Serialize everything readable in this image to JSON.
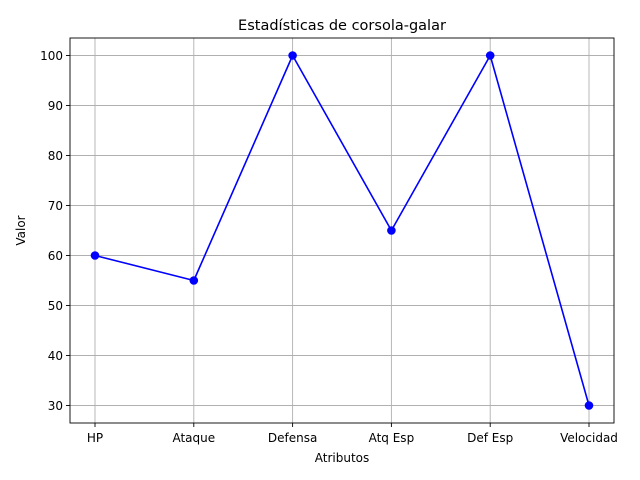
{
  "chart_data": {
    "type": "line",
    "title": "Estadísticas de corsola-galar",
    "xlabel": "Atributos",
    "ylabel": "Valor",
    "categories": [
      "HP",
      "Ataque",
      "Defensa",
      "Atq Esp",
      "Def Esp",
      "Velocidad"
    ],
    "series": [
      {
        "values": [
          60,
          55,
          100,
          65,
          100,
          30
        ]
      }
    ],
    "yticks": [
      30,
      40,
      50,
      60,
      70,
      80,
      90,
      100
    ],
    "ylim": [
      26.5,
      103.5
    ],
    "grid": true,
    "marker": "circle",
    "color": "#0000ff"
  }
}
